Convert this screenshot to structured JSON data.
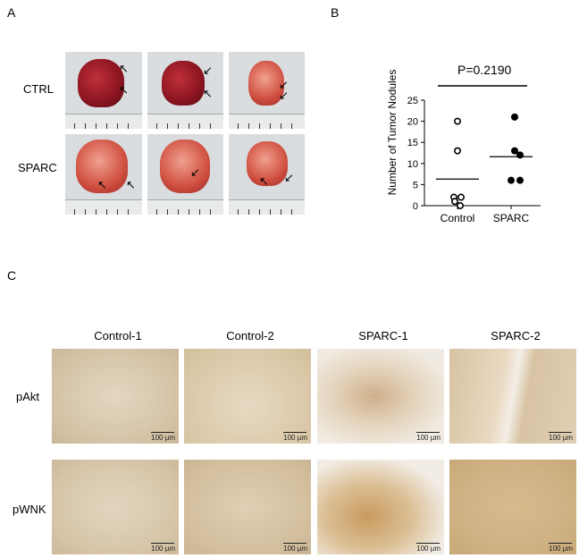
{
  "panels": {
    "a": "A",
    "b": "B",
    "c": "C"
  },
  "panel_a": {
    "rows": [
      "CTRL",
      "SPARC"
    ]
  },
  "panel_c": {
    "columns": [
      "Control-1",
      "Control-2",
      "SPARC-1",
      "SPARC-2"
    ],
    "rows": [
      "pAkt",
      "pWNK"
    ],
    "scale_bar": "100 µm"
  },
  "chart_data": {
    "type": "scatter",
    "ylabel": "Number of Tumor Nodules",
    "annotation": "P=0.2190",
    "categories": [
      "Control",
      "SPARC"
    ],
    "ylim": [
      0,
      25
    ],
    "yticks": [
      0,
      5,
      10,
      15,
      20,
      25
    ],
    "series": [
      {
        "category": "Control",
        "values": [
          20,
          13,
          2,
          1,
          2,
          0
        ],
        "mean": 6.3,
        "marker": "open"
      },
      {
        "category": "SPARC",
        "values": [
          21,
          13,
          12,
          6,
          6
        ],
        "mean": 11.6,
        "marker": "filled"
      }
    ]
  }
}
